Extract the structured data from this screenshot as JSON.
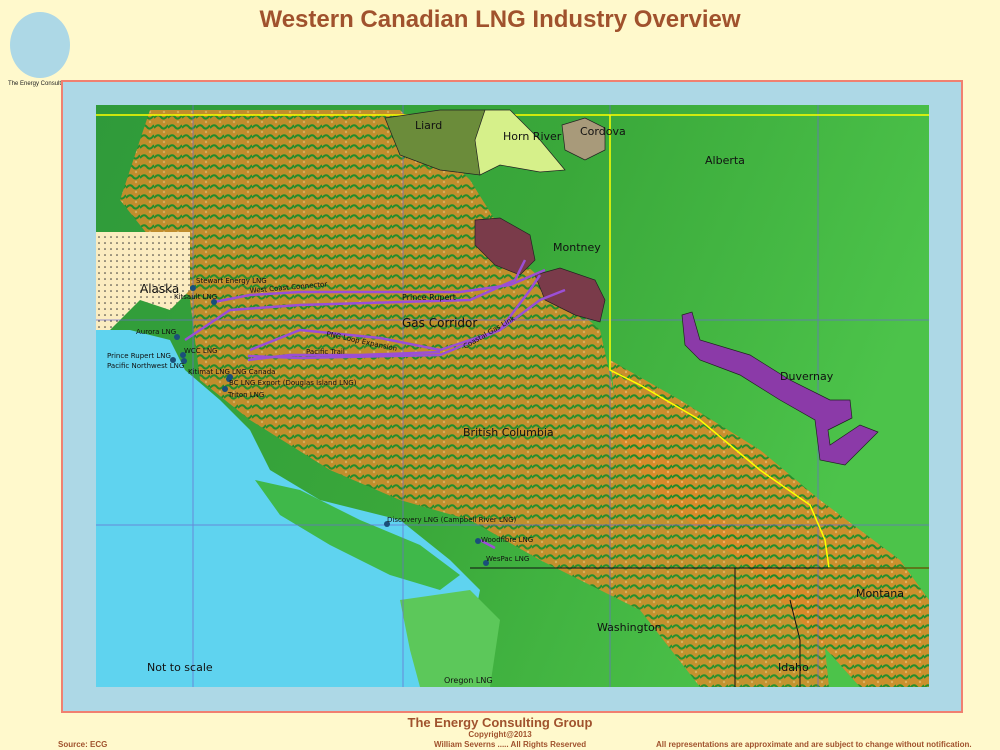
{
  "header": {
    "title": "Western Canadian LNG Industry Overview",
    "logo_caption": "The Energy Consulting Group"
  },
  "colors": {
    "background": "#fff9cc",
    "title": "#a0522d",
    "frame_border": "#f08070",
    "frame_fill": "#add8e6",
    "ocean": "#5fd3ef",
    "pipeline": "#9b4fd6",
    "montney": "#7a3b4a",
    "duvernay": "#8b3aa8",
    "liard": "#6b8c3a",
    "horn_river": "#d6f08a",
    "cordova": "#a89a7a",
    "border_line": "#ffff00"
  },
  "map": {
    "regions": {
      "liard": "Liard",
      "horn_river": "Horn River",
      "cordova": "Cordova",
      "montney": "Montney",
      "duvernay": "Duvernay",
      "alberta": "Alberta",
      "british_columbia": "British Columbia",
      "alaska": "Alaska",
      "gas_corridor": "Gas Corridor",
      "washington": "Washington",
      "montana": "Montana",
      "idaho": "Idaho"
    },
    "pipelines": {
      "west_coast_connector": "West Coast Connector",
      "prince_rupert": "Prince Rupert",
      "png_loop": "PNG Loop Expansion",
      "pacific_trail": "Pacific Trail",
      "coastal_gas_link": "Coastal Gas Link"
    },
    "facilities": [
      "Stewart Energy LNG",
      "Kitsault LNG",
      "Aurora LNG",
      "WCC LNG",
      "Prince Rupert LNG",
      "Pacific Northwest LNG",
      "Kitimat LNG",
      "LNG Canada",
      "BC LNG Export (Douglas Island LNG)",
      "Triton LNG",
      "Discovery LNG (Campbell River LNG)",
      "Woodfibre LNG",
      "WesPac LNG",
      "Oregon LNG"
    ],
    "note": "Not to scale"
  },
  "footer": {
    "org": "The Energy Consulting Group",
    "copyright": "Copyright@2013",
    "source": "Source: ECG",
    "rights": "William Severns ..... All Rights Reserved",
    "disclaimer": "All representations are approximate and are subject to change without notification."
  }
}
